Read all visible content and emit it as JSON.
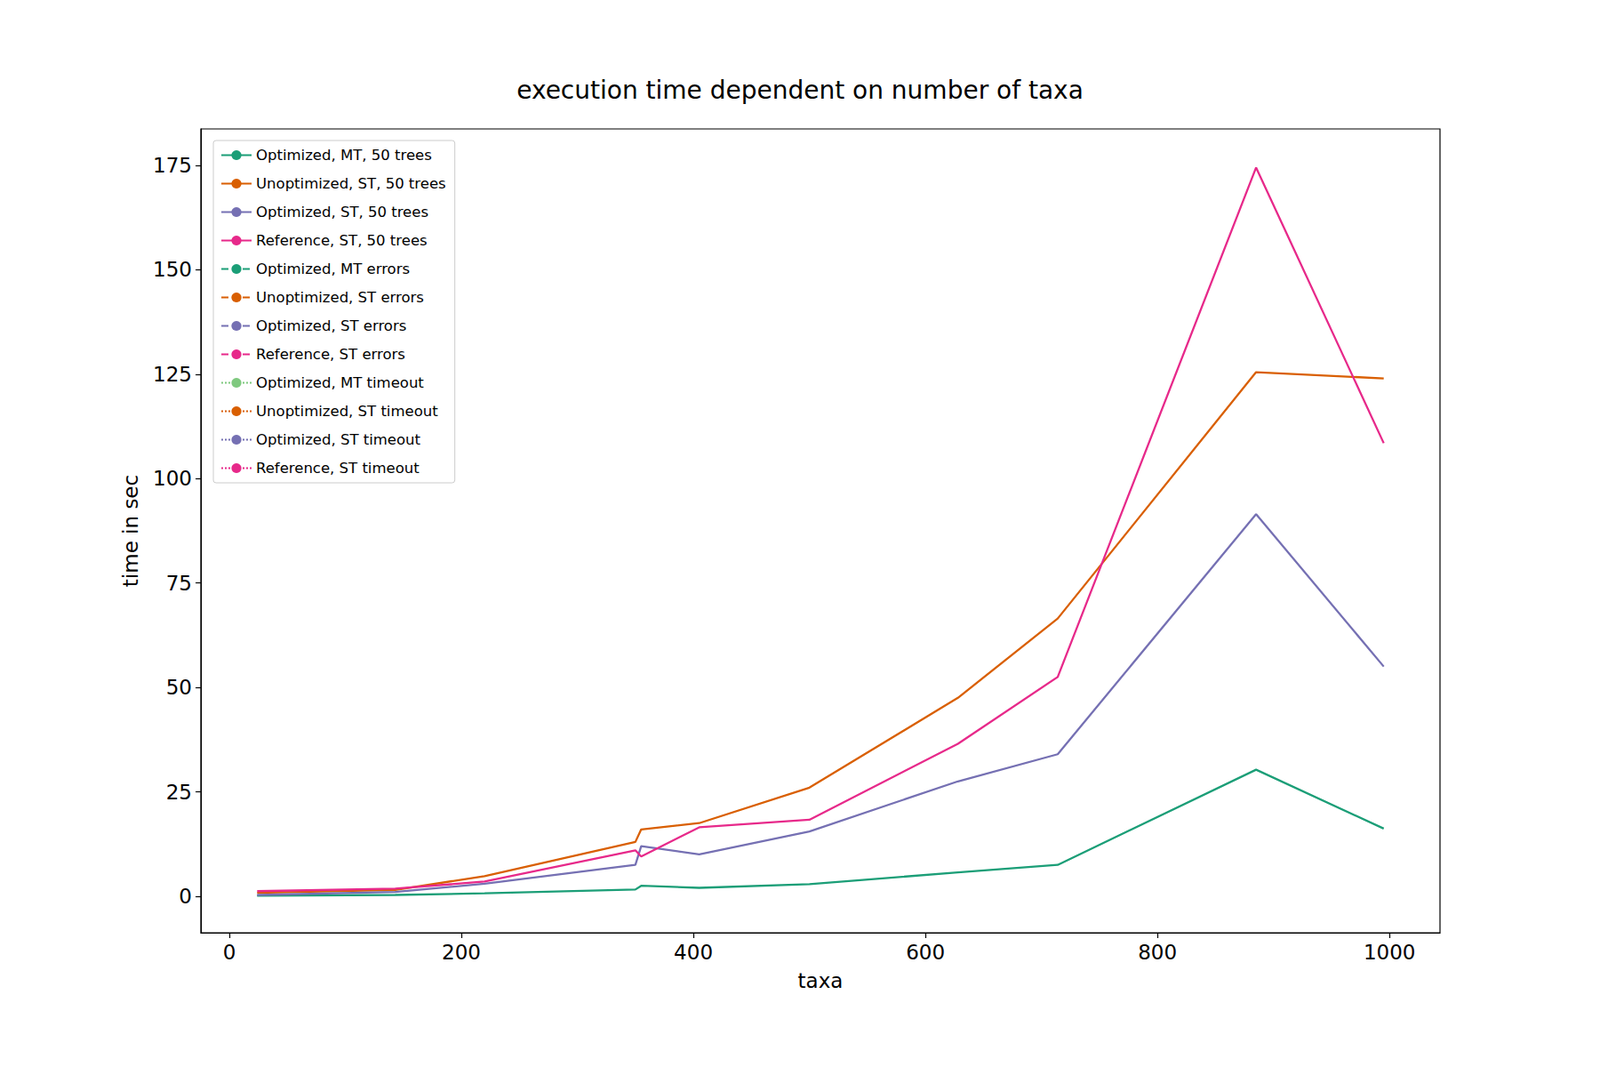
{
  "chart_data": {
    "type": "line",
    "title": "execution time dependent on number of taxa",
    "x_label": "taxa",
    "y_label": "time in sec",
    "x": [
      24,
      143,
      220,
      350,
      355,
      405,
      500,
      628,
      714,
      885,
      995
    ],
    "xlim": [
      -24.5,
      1043.5
    ],
    "xticks": [
      0,
      200,
      400,
      600,
      800,
      1000
    ],
    "ylim": [
      -8.75,
      183.75
    ],
    "yticks": [
      0,
      25,
      50,
      75,
      100,
      125,
      150,
      175
    ],
    "grid": false,
    "legend": "upper left",
    "series": [
      {
        "name": "Optimized, MT, 50 trees",
        "color": "#1b9e77",
        "line_style": "solid",
        "values": [
          0.1,
          0.3,
          0.7,
          1.6,
          2.5,
          2.0,
          2.9,
          5.7,
          7.5,
          30.3,
          16.2
        ]
      },
      {
        "name": "Unoptimized, ST, 50 trees",
        "color": "#d95f02",
        "line_style": "solid",
        "values": [
          0.8,
          1.5,
          4.8,
          13.0,
          16.0,
          17.5,
          26.0,
          47.5,
          66.5,
          125.5,
          124.0
        ]
      },
      {
        "name": "Optimized, ST, 50 trees",
        "color": "#7570b3",
        "line_style": "solid",
        "values": [
          0.3,
          1.0,
          3.0,
          7.5,
          12.0,
          10.0,
          15.5,
          27.5,
          34.0,
          91.5,
          55.0
        ]
      },
      {
        "name": "Reference, ST, 50 trees",
        "color": "#e7298a",
        "line_style": "solid",
        "values": [
          1.2,
          1.8,
          3.5,
          11.0,
          9.5,
          16.5,
          18.3,
          36.5,
          52.5,
          174.5,
          108.5
        ]
      },
      {
        "name": "Optimized, MT errors",
        "color": "#1b9e77",
        "line_style": "dashed",
        "values": [
          null,
          null,
          null,
          null,
          null,
          null,
          null,
          null,
          null,
          null,
          null
        ]
      },
      {
        "name": "Unoptimized, ST errors",
        "color": "#d95f02",
        "line_style": "dashed",
        "values": [
          null,
          null,
          null,
          null,
          null,
          null,
          null,
          null,
          null,
          null,
          null
        ]
      },
      {
        "name": "Optimized, ST errors",
        "color": "#7570b3",
        "line_style": "dashed",
        "values": [
          null,
          null,
          null,
          null,
          null,
          null,
          null,
          null,
          null,
          null,
          null
        ]
      },
      {
        "name": "Reference, ST errors",
        "color": "#e7298a",
        "line_style": "dashed",
        "values": [
          null,
          null,
          null,
          null,
          null,
          null,
          null,
          null,
          null,
          null,
          null
        ]
      },
      {
        "name": "Optimized, MT timeout",
        "color": "#7fc97f",
        "line_style": "dotted",
        "values": [
          null,
          null,
          null,
          null,
          null,
          null,
          null,
          null,
          null,
          null,
          null
        ]
      },
      {
        "name": "Unoptimized, ST timeout",
        "color": "#d95f02",
        "line_style": "dotted",
        "values": [
          null,
          null,
          null,
          null,
          null,
          null,
          null,
          null,
          null,
          null,
          null
        ]
      },
      {
        "name": "Optimized, ST timeout",
        "color": "#7570b3",
        "line_style": "dotted",
        "values": [
          null,
          null,
          null,
          null,
          null,
          null,
          null,
          null,
          null,
          null,
          null
        ]
      },
      {
        "name": "Reference, ST timeout",
        "color": "#e7298a",
        "line_style": "dotted",
        "values": [
          null,
          null,
          null,
          null,
          null,
          null,
          null,
          null,
          null,
          null,
          null
        ]
      }
    ]
  }
}
